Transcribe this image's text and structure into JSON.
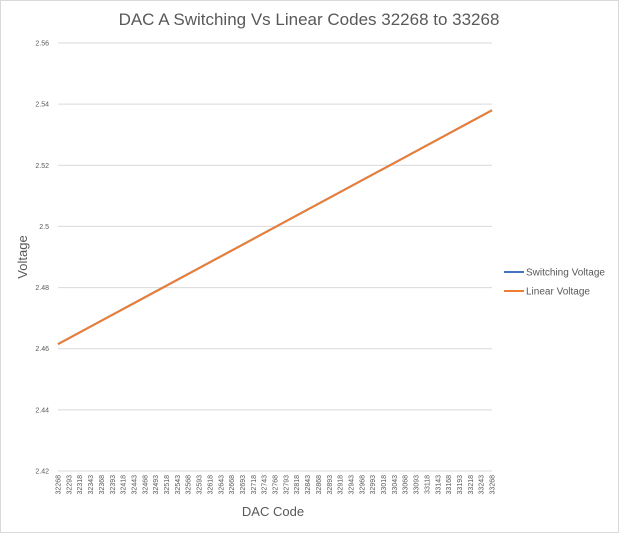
{
  "chart_data": {
    "type": "line",
    "title": "DAC A Switching Vs Linear Codes 32268 to 33268",
    "xlabel": "DAC Code",
    "ylabel": "Voltage",
    "ylim": [
      2.42,
      2.56
    ],
    "y_ticks": [
      "2.56",
      "2.54",
      "2.52",
      "2.5",
      "2.48",
      "2.46",
      "2.44",
      "2.42"
    ],
    "categories": [
      "32268",
      "32293",
      "32318",
      "32343",
      "32368",
      "32393",
      "32418",
      "32443",
      "32468",
      "32493",
      "32518",
      "32543",
      "32568",
      "32593",
      "32618",
      "32643",
      "32668",
      "32693",
      "32718",
      "32743",
      "32768",
      "32793",
      "32818",
      "32843",
      "32868",
      "32893",
      "32918",
      "32943",
      "32968",
      "32993",
      "33018",
      "33043",
      "33068",
      "33093",
      "33118",
      "33143",
      "33168",
      "33193",
      "33218",
      "33243",
      "33268"
    ],
    "x_range": [
      32268,
      33268
    ],
    "series": [
      {
        "name": "Switching Voltage",
        "color": "#4472C4",
        "x": [
          32268,
          33268
        ],
        "y": [
          2.4615,
          2.538
        ]
      },
      {
        "name": "Linear Voltage",
        "color": "#ED7D31",
        "x": [
          32268,
          33268
        ],
        "y": [
          2.4615,
          2.538
        ]
      }
    ],
    "grid": "horizontal",
    "legend": "right"
  }
}
